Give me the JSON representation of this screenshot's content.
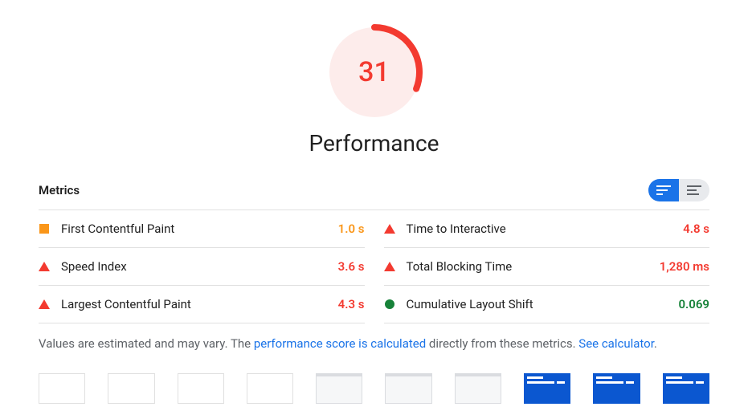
{
  "score": {
    "value": "31",
    "color": "#f33a30",
    "bg_color": "#fdeceb",
    "fraction": 0.31
  },
  "title": "Performance",
  "metrics_label": "Metrics",
  "metrics": [
    {
      "name": "First Contentful Paint",
      "value": "1.0 s",
      "status": "average"
    },
    {
      "name": "Time to Interactive",
      "value": "4.8 s",
      "status": "poor"
    },
    {
      "name": "Speed Index",
      "value": "3.6 s",
      "status": "poor"
    },
    {
      "name": "Total Blocking Time",
      "value": "1,280 ms",
      "status": "poor"
    },
    {
      "name": "Largest Contentful Paint",
      "value": "4.3 s",
      "status": "poor"
    },
    {
      "name": "Cumulative Layout Shift",
      "value": "0.069",
      "status": "good"
    }
  ],
  "footnote": {
    "prefix": "Values are estimated and may vary. The ",
    "link1": "performance score is calculated",
    "mid": " directly from these metrics. ",
    "link2": "See calculator",
    "suffix": "."
  },
  "status_colors": {
    "average": "#fa9619",
    "poor": "#f33a30",
    "good": "#178239"
  },
  "filmstrip": [
    {
      "kind": "blank"
    },
    {
      "kind": "blank"
    },
    {
      "kind": "blank"
    },
    {
      "kind": "blank"
    },
    {
      "kind": "light"
    },
    {
      "kind": "light"
    },
    {
      "kind": "light"
    },
    {
      "kind": "blue"
    },
    {
      "kind": "blue"
    },
    {
      "kind": "blue"
    }
  ],
  "toggle": {
    "active": "expanded"
  }
}
